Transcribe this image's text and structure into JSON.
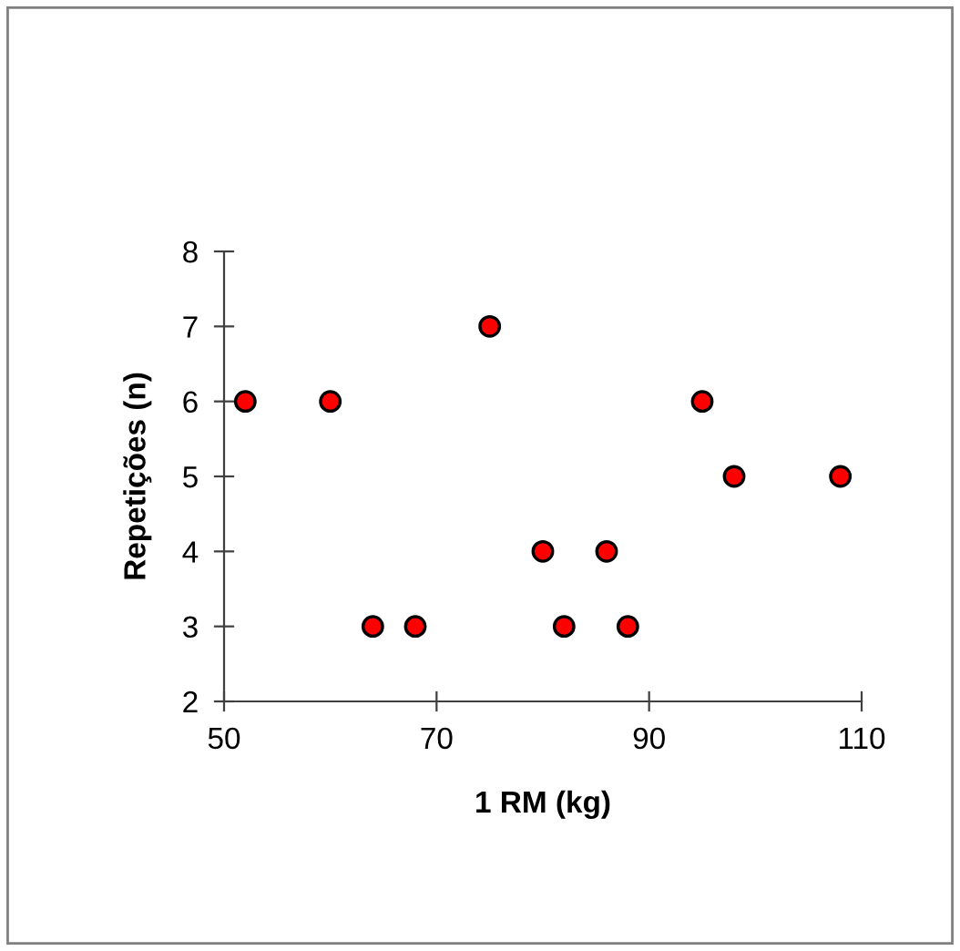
{
  "chart_data": {
    "type": "scatter",
    "xlabel": "1 RM (kg)",
    "ylabel": "Repetições (n)",
    "x": [
      52,
      60,
      64,
      68,
      75,
      80,
      82,
      86,
      88,
      95,
      98,
      108
    ],
    "series": [
      {
        "color": "#ff0000",
        "values": [
          6,
          6,
          3,
          3,
          7,
          4,
          3,
          4,
          3,
          6,
          5,
          5
        ]
      }
    ],
    "xlim": [
      50,
      110
    ],
    "xticks": [
      50,
      70,
      90,
      110
    ],
    "ylim": [
      2,
      8
    ],
    "yticks": [
      2,
      3,
      4,
      5,
      6,
      7,
      8
    ],
    "marker": "circle",
    "grid": false,
    "legend": false
  }
}
